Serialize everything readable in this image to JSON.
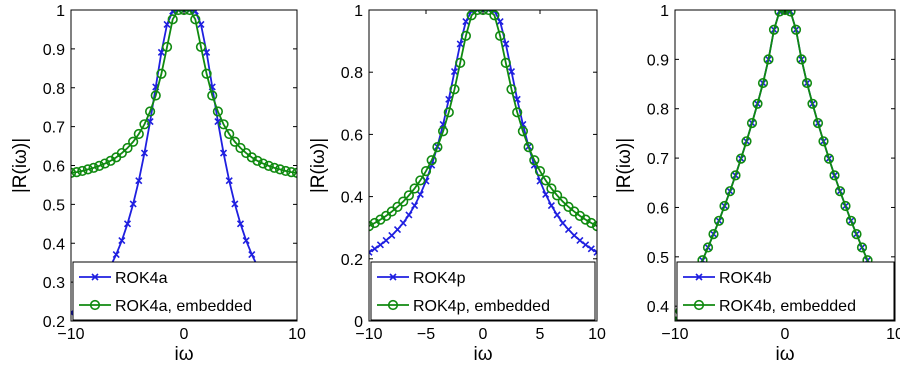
{
  "colors": {
    "blue": "#1f1fe0",
    "green": "#108a10",
    "axis": "#000000"
  },
  "chart_data": [
    {
      "type": "line",
      "xlabel": "iω",
      "ylabel": "|R(iω)|",
      "xlim": [
        -10,
        10
      ],
      "ylim": [
        0.2,
        1.0
      ],
      "xticks": [
        "−10",
        "0",
        "10"
      ],
      "yticks": [
        "0.2",
        "0.3",
        "0.4",
        "0.5",
        "0.6",
        "0.7",
        "0.8",
        "0.9",
        "1"
      ],
      "legend_position": "bottom",
      "series": [
        {
          "name": "ROK4a",
          "color": "#1f1fe0",
          "marker": "x",
          "x": [
            -10,
            -9.5,
            -9,
            -8.5,
            -8,
            -7.5,
            -7,
            -6.5,
            -6,
            -5.5,
            -5,
            -4.5,
            -4,
            -3.5,
            -3,
            -2.5,
            -2,
            -1.5,
            -1,
            -0.5,
            0,
            0.5,
            1,
            1.5,
            2,
            2.5,
            3,
            3.5,
            4,
            4.5,
            5,
            5.5,
            6,
            6.5,
            7,
            7.5,
            8,
            8.5,
            9,
            9.5,
            10
          ],
          "y": [
            0.221,
            0.232,
            0.245,
            0.259,
            0.275,
            0.294,
            0.315,
            0.341,
            0.371,
            0.407,
            0.45,
            0.501,
            0.561,
            0.632,
            0.713,
            0.802,
            0.891,
            0.963,
            0.997,
            1.0,
            1.0,
            1.0,
            0.997,
            0.963,
            0.891,
            0.802,
            0.713,
            0.632,
            0.561,
            0.501,
            0.45,
            0.407,
            0.371,
            0.341,
            0.315,
            0.294,
            0.275,
            0.259,
            0.245,
            0.232,
            0.221
          ]
        },
        {
          "name": "ROK4a, embedded",
          "color": "#108a10",
          "marker": "o",
          "x": [
            -10,
            -9.5,
            -9,
            -8.5,
            -8,
            -7.5,
            -7,
            -6.5,
            -6,
            -5.5,
            -5,
            -4.5,
            -4,
            -3.5,
            -3,
            -2.5,
            -2,
            -1.5,
            -1,
            -0.5,
            0,
            0.5,
            1,
            1.5,
            2,
            2.5,
            3,
            3.5,
            4,
            4.5,
            5,
            5.5,
            6,
            6.5,
            7,
            7.5,
            8,
            8.5,
            9,
            9.5,
            10
          ],
          "y": [
            0.581,
            0.583,
            0.586,
            0.59,
            0.594,
            0.599,
            0.605,
            0.612,
            0.621,
            0.632,
            0.645,
            0.661,
            0.681,
            0.706,
            0.739,
            0.78,
            0.836,
            0.905,
            0.976,
            1.0,
            1.0,
            1.0,
            0.976,
            0.905,
            0.836,
            0.78,
            0.739,
            0.706,
            0.681,
            0.661,
            0.645,
            0.632,
            0.621,
            0.612,
            0.605,
            0.599,
            0.594,
            0.59,
            0.586,
            0.583,
            0.581
          ]
        }
      ]
    },
    {
      "type": "line",
      "xlabel": "iω",
      "ylabel": "|R(iω)|",
      "xlim": [
        -10,
        10
      ],
      "ylim": [
        0,
        1
      ],
      "xticks": [
        "−10",
        "−5",
        "0",
        "5",
        "10"
      ],
      "yticks": [
        "0",
        "0.2",
        "0.4",
        "0.6",
        "0.8",
        "1"
      ],
      "legend_position": "bottom",
      "series": [
        {
          "name": "ROK4p",
          "color": "#1f1fe0",
          "marker": "x",
          "x": [
            -10,
            -9.5,
            -9,
            -8.5,
            -8,
            -7.5,
            -7,
            -6.5,
            -6,
            -5.5,
            -5,
            -4.5,
            -4,
            -3.5,
            -3,
            -2.5,
            -2,
            -1.5,
            -1,
            -0.5,
            0,
            0.5,
            1,
            1.5,
            2,
            2.5,
            3,
            3.5,
            4,
            4.5,
            5,
            5.5,
            6,
            6.5,
            7,
            7.5,
            8,
            8.5,
            9,
            9.5,
            10
          ],
          "y": [
            0.221,
            0.232,
            0.245,
            0.259,
            0.275,
            0.294,
            0.315,
            0.341,
            0.371,
            0.407,
            0.45,
            0.501,
            0.561,
            0.632,
            0.713,
            0.802,
            0.891,
            0.963,
            0.997,
            1.0,
            1.0,
            1.0,
            0.997,
            0.963,
            0.891,
            0.802,
            0.713,
            0.632,
            0.561,
            0.501,
            0.45,
            0.407,
            0.371,
            0.341,
            0.315,
            0.294,
            0.275,
            0.259,
            0.245,
            0.232,
            0.221
          ]
        },
        {
          "name": "ROK4p, embedded",
          "color": "#108a10",
          "marker": "o",
          "x": [
            -10,
            -9.5,
            -9,
            -8.5,
            -8,
            -7.5,
            -7,
            -6.5,
            -6,
            -5.5,
            -5,
            -4.5,
            -4,
            -3.5,
            -3,
            -2.5,
            -2,
            -1.5,
            -1,
            -0.5,
            0,
            0.5,
            1,
            1.5,
            2,
            2.5,
            3,
            3.5,
            4,
            4.5,
            5,
            5.5,
            6,
            6.5,
            7,
            7.5,
            8,
            8.5,
            9,
            9.5,
            10
          ],
          "y": [
            0.305,
            0.315,
            0.326,
            0.338,
            0.352,
            0.367,
            0.384,
            0.404,
            0.426,
            0.452,
            0.482,
            0.517,
            0.559,
            0.61,
            0.671,
            0.745,
            0.83,
            0.917,
            0.983,
            1.0,
            1.0,
            1.0,
            0.983,
            0.917,
            0.83,
            0.745,
            0.671,
            0.61,
            0.559,
            0.517,
            0.482,
            0.452,
            0.426,
            0.404,
            0.384,
            0.367,
            0.352,
            0.338,
            0.326,
            0.315,
            0.305
          ]
        }
      ]
    },
    {
      "type": "line",
      "xlabel": "iω",
      "ylabel": "|R(iω)|",
      "xlim": [
        -10,
        10
      ],
      "ylim": [
        0.37,
        1.0
      ],
      "xticks": [
        "−10",
        "0",
        "10"
      ],
      "yticks": [
        "0.4",
        "0.5",
        "0.6",
        "0.7",
        "0.8",
        "0.9",
        "1"
      ],
      "legend_position": "bottom",
      "series": [
        {
          "name": "ROK4b",
          "color": "#1f1fe0",
          "marker": "x",
          "x": [
            -10,
            -9.5,
            -9,
            -8.5,
            -8,
            -7.5,
            -7,
            -6.5,
            -6,
            -5.5,
            -5,
            -4.5,
            -4,
            -3.5,
            -3,
            -2.5,
            -2,
            -1.5,
            -1,
            -0.5,
            0,
            0.5,
            1,
            1.5,
            2,
            2.5,
            3,
            3.5,
            4,
            4.5,
            5,
            5.5,
            6,
            6.5,
            7,
            7.5,
            8,
            8.5,
            9,
            9.5,
            10
          ],
          "y": [
            0.369,
            0.39,
            0.414,
            0.44,
            0.467,
            0.493,
            0.519,
            0.546,
            0.573,
            0.603,
            0.633,
            0.665,
            0.699,
            0.734,
            0.771,
            0.81,
            0.852,
            0.9,
            0.96,
            0.997,
            1.0,
            0.997,
            0.96,
            0.9,
            0.852,
            0.81,
            0.771,
            0.734,
            0.699,
            0.665,
            0.633,
            0.603,
            0.573,
            0.546,
            0.519,
            0.493,
            0.467,
            0.44,
            0.414,
            0.39,
            0.369
          ]
        },
        {
          "name": "ROK4b, embedded",
          "color": "#108a10",
          "marker": "o",
          "x": [
            -10,
            -9.5,
            -9,
            -8.5,
            -8,
            -7.5,
            -7,
            -6.5,
            -6,
            -5.5,
            -5,
            -4.5,
            -4,
            -3.5,
            -3,
            -2.5,
            -2,
            -1.5,
            -1,
            -0.5,
            0,
            0.5,
            1,
            1.5,
            2,
            2.5,
            3,
            3.5,
            4,
            4.5,
            5,
            5.5,
            6,
            6.5,
            7,
            7.5,
            8,
            8.5,
            9,
            9.5,
            10
          ],
          "y": [
            0.369,
            0.39,
            0.414,
            0.44,
            0.467,
            0.493,
            0.519,
            0.546,
            0.573,
            0.603,
            0.633,
            0.665,
            0.699,
            0.734,
            0.771,
            0.81,
            0.852,
            0.9,
            0.96,
            0.997,
            1.0,
            0.997,
            0.96,
            0.9,
            0.852,
            0.81,
            0.771,
            0.734,
            0.699,
            0.665,
            0.633,
            0.603,
            0.573,
            0.546,
            0.519,
            0.493,
            0.467,
            0.44,
            0.414,
            0.39,
            0.369
          ]
        }
      ]
    }
  ]
}
